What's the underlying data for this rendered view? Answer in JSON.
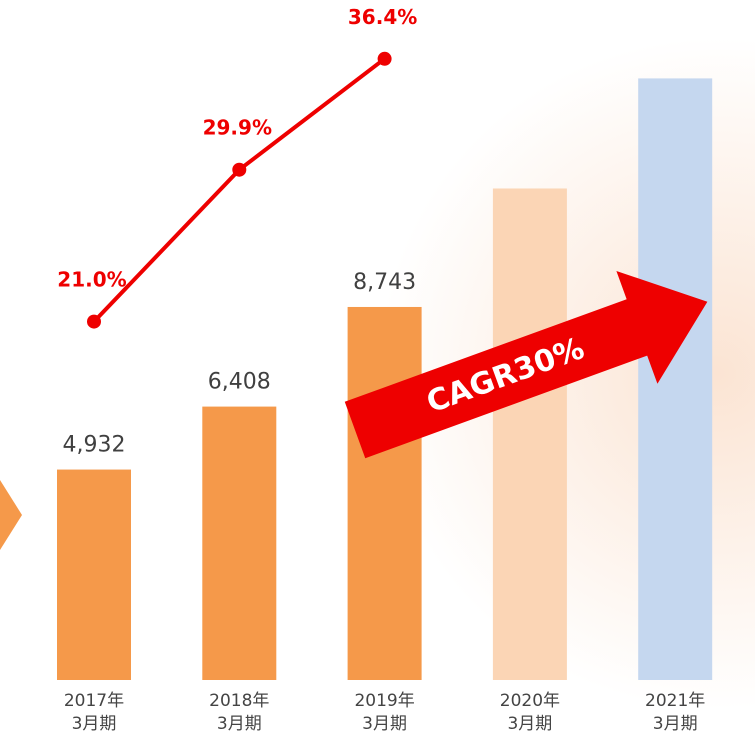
{
  "chart_data": {
    "type": "bar",
    "categories": [
      "2017年\n3月期",
      "2018年\n3月期",
      "2019年\n3月期",
      "2020年\n3月期",
      "2021年\n3月期"
    ],
    "ylim": [
      0,
      15000
    ],
    "y2lim": [
      0,
      37.5
    ],
    "series": [
      {
        "type": "bar",
        "colors": [
          "#f5994a",
          "#f5994a",
          "#f5994a",
          "#fbd5b5",
          "#c5d7ef"
        ],
        "values": [
          4932,
          6408,
          8743,
          11520,
          14100
        ],
        "value_labels": [
          "4,932",
          "6,408",
          "8,743",
          null,
          null
        ]
      },
      {
        "type": "line",
        "axis": "y2",
        "color": "#ee0000",
        "values": [
          21.0,
          29.9,
          36.4,
          null,
          null
        ],
        "value_labels": [
          "21.0%",
          "29.9%",
          "36.4%",
          null,
          null
        ]
      }
    ],
    "annotation": "CAGR30%"
  }
}
